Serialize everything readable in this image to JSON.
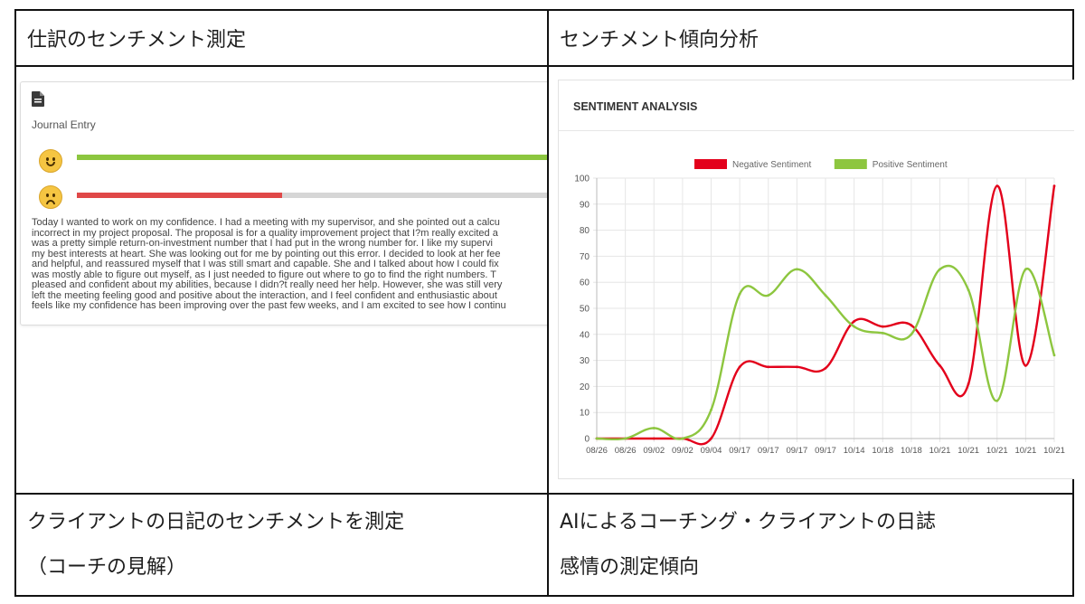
{
  "table": {
    "header_left": "仕訳のセンチメント測定",
    "header_right": "センチメント傾向分析",
    "footer_left": [
      "クライアントの日記のセンチメントを測定",
      "（コーチの見解）"
    ],
    "footer_right": [
      "AIによるコーチング・クライアントの日誌",
      "感情の測定傾向"
    ]
  },
  "journal": {
    "icon": "document-icon",
    "label": "Journal Entry",
    "positive_icon": "smile-face-icon",
    "negative_icon": "frown-face-icon",
    "positive_fraction": 1.0,
    "negative_fraction": 0.42,
    "positive_color": "#8cc63f",
    "negative_color": "#e04848",
    "text": "Today I wanted to work on my confidence. I had a meeting with my supervisor, and she pointed out a calcu\nincorrect in my project proposal. The proposal is for a quality improvement project that I?m really excited a\nwas a pretty simple return-on-investment number that I had put in the wrong number for. I like my supervi\nmy best interests at heart. She was looking out for me by pointing out this error. I decided to look at her fee\nand helpful, and reassured myself that I was still smart and capable. She and I talked about how I could fix \nwas mostly able to figure out myself, as I just needed to figure out where to go to find the right numbers. T\npleased and confident about my abilities, because I didn?t really need her help. However, she was still very \nleft the meeting feeling good and positive about the interaction, and I feel confident and enthusiastic about\nfeels like my confidence has been improving over the past few weeks, and I am excited to see how I continu"
  },
  "chart_data": {
    "type": "line",
    "title": "SENTIMENT ANALYSIS",
    "categories": [
      "08/26",
      "08/26",
      "09/02",
      "09/02",
      "09/04",
      "09/17",
      "09/17",
      "09/17",
      "09/17",
      "10/14",
      "10/18",
      "10/18",
      "10/21",
      "10/21",
      "10/21",
      "10/21",
      "10/21"
    ],
    "ylim": [
      0,
      100
    ],
    "yticks": [
      0,
      10,
      20,
      30,
      40,
      50,
      60,
      70,
      80,
      90,
      100
    ],
    "grid": true,
    "legend_position": "top",
    "series": [
      {
        "name": "Negative Sentiment",
        "color": "#e3001b",
        "values": [
          0,
          0,
          0,
          0,
          0,
          27.5,
          27.5,
          27.5,
          27,
          45,
          43,
          43.5,
          28,
          21,
          97,
          28,
          97
        ]
      },
      {
        "name": "Positive Sentiment",
        "color": "#8dc63f",
        "values": [
          0,
          0,
          4,
          0,
          11,
          55.5,
          55,
          65,
          55,
          43,
          40.5,
          40,
          65,
          57,
          14.5,
          65,
          32
        ]
      }
    ]
  }
}
